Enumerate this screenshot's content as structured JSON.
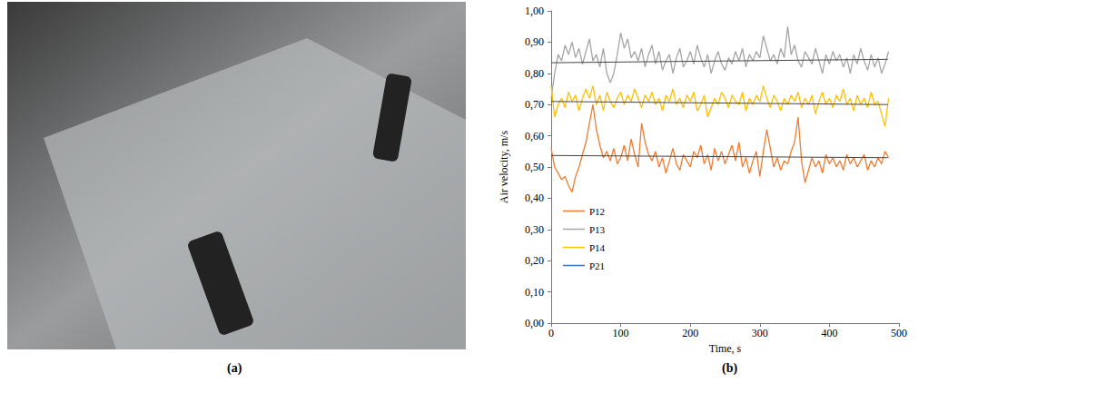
{
  "panel_labels": [
    "(a)",
    "(b)"
  ],
  "chart_data": {
    "type": "line",
    "x_label": "Time, s",
    "y_label": "Air velocity, m/s",
    "xlim": [
      0,
      500
    ],
    "xticks": [
      0,
      100,
      200,
      300,
      400,
      500
    ],
    "ylim": [
      0,
      1
    ],
    "yticks": [
      {
        "value": 0,
        "label": "0,00"
      },
      {
        "value": 0.1,
        "label": "0,10"
      },
      {
        "value": 0.2,
        "label": "0,20"
      },
      {
        "value": 0.3,
        "label": "0,30"
      },
      {
        "value": 0.4,
        "label": "0,40"
      },
      {
        "value": 0.5,
        "label": "0,50"
      },
      {
        "value": 0.6,
        "label": "0,60"
      },
      {
        "value": 0.7,
        "label": "0,70"
      },
      {
        "value": 0.8,
        "label": "0,80"
      },
      {
        "value": 0.9,
        "label": "0,90"
      },
      {
        "value": 1,
        "label": "1,00"
      }
    ],
    "grid": false,
    "legend": "lower left",
    "x": [
      0,
      5,
      10,
      15,
      20,
      25,
      30,
      35,
      40,
      45,
      50,
      55,
      60,
      65,
      70,
      75,
      80,
      85,
      90,
      95,
      100,
      105,
      110,
      115,
      120,
      125,
      130,
      135,
      140,
      145,
      150,
      155,
      160,
      165,
      170,
      175,
      180,
      185,
      190,
      195,
      200,
      205,
      210,
      215,
      220,
      225,
      230,
      235,
      240,
      245,
      250,
      255,
      260,
      265,
      270,
      275,
      280,
      285,
      290,
      295,
      300,
      305,
      310,
      315,
      320,
      325,
      330,
      335,
      340,
      345,
      350,
      355,
      360,
      365,
      370,
      375,
      380,
      385,
      390,
      395,
      400,
      405,
      410,
      415,
      420,
      425,
      430,
      435,
      440,
      445,
      450,
      455,
      460,
      465,
      470,
      475,
      480,
      485
    ],
    "series": [
      {
        "name": "P12",
        "color": "#ed7d31",
        "values": [
          0.56,
          0.5,
          0.48,
          0.46,
          0.47,
          0.44,
          0.42,
          0.47,
          0.5,
          0.54,
          0.58,
          0.64,
          0.7,
          0.62,
          0.57,
          0.53,
          0.55,
          0.52,
          0.56,
          0.51,
          0.53,
          0.57,
          0.52,
          0.59,
          0.54,
          0.5,
          0.64,
          0.58,
          0.54,
          0.52,
          0.55,
          0.5,
          0.53,
          0.48,
          0.52,
          0.56,
          0.51,
          0.49,
          0.54,
          0.52,
          0.5,
          0.55,
          0.53,
          0.57,
          0.51,
          0.54,
          0.49,
          0.56,
          0.52,
          0.55,
          0.51,
          0.54,
          0.57,
          0.52,
          0.58,
          0.5,
          0.53,
          0.48,
          0.52,
          0.55,
          0.47,
          0.55,
          0.62,
          0.56,
          0.5,
          0.53,
          0.49,
          0.52,
          0.51,
          0.55,
          0.58,
          0.66,
          0.52,
          0.45,
          0.49,
          0.53,
          0.5,
          0.52,
          0.48,
          0.54,
          0.51,
          0.53,
          0.5,
          0.52,
          0.49,
          0.54,
          0.51,
          0.53,
          0.5,
          0.52,
          0.54,
          0.49,
          0.52,
          0.5,
          0.53,
          0.51,
          0.55,
          0.53
        ],
        "trend": {
          "x": [
            0,
            484
          ],
          "values": [
            0.537,
            0.53
          ]
        }
      },
      {
        "name": "P13",
        "color": "#a5a5a5",
        "values": [
          0.72,
          0.8,
          0.86,
          0.84,
          0.89,
          0.86,
          0.9,
          0.85,
          0.88,
          0.83,
          0.87,
          0.91,
          0.84,
          0.86,
          0.82,
          0.88,
          0.8,
          0.77,
          0.8,
          0.86,
          0.93,
          0.88,
          0.91,
          0.85,
          0.87,
          0.84,
          0.88,
          0.82,
          0.86,
          0.89,
          0.83,
          0.87,
          0.81,
          0.84,
          0.86,
          0.8,
          0.85,
          0.88,
          0.82,
          0.84,
          0.87,
          0.83,
          0.89,
          0.85,
          0.82,
          0.86,
          0.8,
          0.84,
          0.87,
          0.83,
          0.81,
          0.85,
          0.83,
          0.87,
          0.84,
          0.88,
          0.82,
          0.86,
          0.84,
          0.87,
          0.85,
          0.92,
          0.88,
          0.84,
          0.86,
          0.83,
          0.88,
          0.85,
          0.95,
          0.86,
          0.89,
          0.84,
          0.82,
          0.87,
          0.85,
          0.83,
          0.88,
          0.84,
          0.8,
          0.86,
          0.83,
          0.87,
          0.84,
          0.86,
          0.82,
          0.85,
          0.8,
          0.86,
          0.83,
          0.88,
          0.84,
          0.81,
          0.86,
          0.82,
          0.85,
          0.8,
          0.83,
          0.87
        ],
        "trend": {
          "x": [
            0,
            484
          ],
          "values": [
            0.834,
            0.845
          ]
        }
      },
      {
        "name": "P14",
        "color": "#ffc000",
        "values": [
          0.76,
          0.66,
          0.7,
          0.72,
          0.69,
          0.74,
          0.71,
          0.73,
          0.68,
          0.72,
          0.75,
          0.72,
          0.76,
          0.7,
          0.73,
          0.68,
          0.74,
          0.71,
          0.69,
          0.72,
          0.74,
          0.7,
          0.73,
          0.71,
          0.75,
          0.72,
          0.69,
          0.73,
          0.71,
          0.74,
          0.7,
          0.72,
          0.68,
          0.73,
          0.71,
          0.75,
          0.7,
          0.72,
          0.69,
          0.73,
          0.71,
          0.74,
          0.68,
          0.7,
          0.73,
          0.66,
          0.69,
          0.72,
          0.7,
          0.74,
          0.72,
          0.69,
          0.73,
          0.71,
          0.7,
          0.74,
          0.68,
          0.72,
          0.7,
          0.73,
          0.71,
          0.76,
          0.72,
          0.69,
          0.73,
          0.71,
          0.68,
          0.72,
          0.7,
          0.73,
          0.71,
          0.74,
          0.69,
          0.72,
          0.7,
          0.73,
          0.67,
          0.71,
          0.74,
          0.7,
          0.72,
          0.69,
          0.73,
          0.71,
          0.75,
          0.7,
          0.72,
          0.68,
          0.73,
          0.7,
          0.72,
          0.69,
          0.74,
          0.7,
          0.71,
          0.67,
          0.63,
          0.72
        ],
        "trend": {
          "x": [
            0,
            484
          ],
          "values": [
            0.71,
            0.7
          ]
        }
      },
      {
        "name": "P21",
        "color": "#4472c4",
        "values": [
          null,
          null,
          null,
          null,
          null,
          null,
          null,
          null,
          null,
          null,
          null,
          null,
          null,
          null,
          null,
          null,
          null,
          null,
          null,
          null,
          null,
          null,
          null,
          null,
          null,
          null,
          null,
          null,
          null,
          null,
          null,
          null,
          null,
          null,
          null,
          null,
          null,
          null,
          null,
          null,
          null,
          null,
          null,
          null,
          null,
          null,
          null,
          null,
          null,
          null,
          null,
          null,
          null,
          null,
          null,
          null,
          null,
          null,
          null,
          null,
          null,
          null,
          null,
          null,
          null,
          null,
          null,
          null,
          null,
          null,
          null,
          null,
          null,
          null,
          null,
          null,
          null,
          null,
          null,
          null,
          null,
          null,
          null,
          null,
          null,
          null,
          null,
          null,
          null,
          null,
          null,
          null,
          null,
          null,
          null,
          null,
          null,
          null
        ]
      }
    ]
  }
}
